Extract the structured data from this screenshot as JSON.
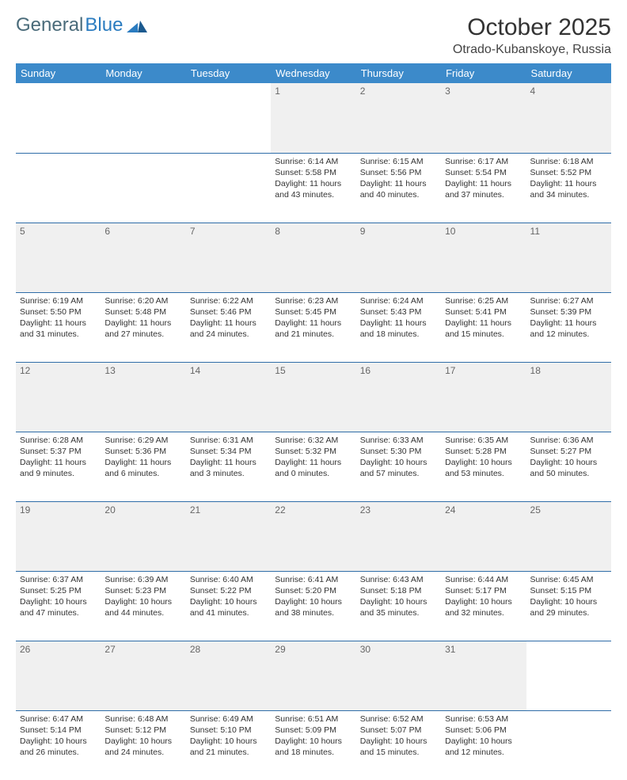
{
  "logo": {
    "text1": "General",
    "text2": "Blue"
  },
  "header": {
    "month_title": "October 2025",
    "location": "Otrado-Kubanskoye, Russia"
  },
  "style": {
    "header_bg": "#3c8aca",
    "header_fg": "#ffffff",
    "daynum_bg": "#f0f0f0",
    "rule_color": "#2f6da8",
    "body_fontsize": 10.5,
    "logo_color1": "#4a6b7a",
    "logo_color2": "#2b7cc0"
  },
  "weekdays": [
    "Sunday",
    "Monday",
    "Tuesday",
    "Wednesday",
    "Thursday",
    "Friday",
    "Saturday"
  ],
  "weeks": [
    [
      null,
      null,
      null,
      {
        "n": "1",
        "sr": "6:14 AM",
        "ss": "5:58 PM",
        "dh": "11",
        "dm": "43"
      },
      {
        "n": "2",
        "sr": "6:15 AM",
        "ss": "5:56 PM",
        "dh": "11",
        "dm": "40"
      },
      {
        "n": "3",
        "sr": "6:17 AM",
        "ss": "5:54 PM",
        "dh": "11",
        "dm": "37"
      },
      {
        "n": "4",
        "sr": "6:18 AM",
        "ss": "5:52 PM",
        "dh": "11",
        "dm": "34"
      }
    ],
    [
      {
        "n": "5",
        "sr": "6:19 AM",
        "ss": "5:50 PM",
        "dh": "11",
        "dm": "31"
      },
      {
        "n": "6",
        "sr": "6:20 AM",
        "ss": "5:48 PM",
        "dh": "11",
        "dm": "27"
      },
      {
        "n": "7",
        "sr": "6:22 AM",
        "ss": "5:46 PM",
        "dh": "11",
        "dm": "24"
      },
      {
        "n": "8",
        "sr": "6:23 AM",
        "ss": "5:45 PM",
        "dh": "11",
        "dm": "21"
      },
      {
        "n": "9",
        "sr": "6:24 AM",
        "ss": "5:43 PM",
        "dh": "11",
        "dm": "18"
      },
      {
        "n": "10",
        "sr": "6:25 AM",
        "ss": "5:41 PM",
        "dh": "11",
        "dm": "15"
      },
      {
        "n": "11",
        "sr": "6:27 AM",
        "ss": "5:39 PM",
        "dh": "11",
        "dm": "12"
      }
    ],
    [
      {
        "n": "12",
        "sr": "6:28 AM",
        "ss": "5:37 PM",
        "dh": "11",
        "dm": "9"
      },
      {
        "n": "13",
        "sr": "6:29 AM",
        "ss": "5:36 PM",
        "dh": "11",
        "dm": "6"
      },
      {
        "n": "14",
        "sr": "6:31 AM",
        "ss": "5:34 PM",
        "dh": "11",
        "dm": "3"
      },
      {
        "n": "15",
        "sr": "6:32 AM",
        "ss": "5:32 PM",
        "dh": "11",
        "dm": "0"
      },
      {
        "n": "16",
        "sr": "6:33 AM",
        "ss": "5:30 PM",
        "dh": "10",
        "dm": "57"
      },
      {
        "n": "17",
        "sr": "6:35 AM",
        "ss": "5:28 PM",
        "dh": "10",
        "dm": "53"
      },
      {
        "n": "18",
        "sr": "6:36 AM",
        "ss": "5:27 PM",
        "dh": "10",
        "dm": "50"
      }
    ],
    [
      {
        "n": "19",
        "sr": "6:37 AM",
        "ss": "5:25 PM",
        "dh": "10",
        "dm": "47"
      },
      {
        "n": "20",
        "sr": "6:39 AM",
        "ss": "5:23 PM",
        "dh": "10",
        "dm": "44"
      },
      {
        "n": "21",
        "sr": "6:40 AM",
        "ss": "5:22 PM",
        "dh": "10",
        "dm": "41"
      },
      {
        "n": "22",
        "sr": "6:41 AM",
        "ss": "5:20 PM",
        "dh": "10",
        "dm": "38"
      },
      {
        "n": "23",
        "sr": "6:43 AM",
        "ss": "5:18 PM",
        "dh": "10",
        "dm": "35"
      },
      {
        "n": "24",
        "sr": "6:44 AM",
        "ss": "5:17 PM",
        "dh": "10",
        "dm": "32"
      },
      {
        "n": "25",
        "sr": "6:45 AM",
        "ss": "5:15 PM",
        "dh": "10",
        "dm": "29"
      }
    ],
    [
      {
        "n": "26",
        "sr": "6:47 AM",
        "ss": "5:14 PM",
        "dh": "10",
        "dm": "26"
      },
      {
        "n": "27",
        "sr": "6:48 AM",
        "ss": "5:12 PM",
        "dh": "10",
        "dm": "24"
      },
      {
        "n": "28",
        "sr": "6:49 AM",
        "ss": "5:10 PM",
        "dh": "10",
        "dm": "21"
      },
      {
        "n": "29",
        "sr": "6:51 AM",
        "ss": "5:09 PM",
        "dh": "10",
        "dm": "18"
      },
      {
        "n": "30",
        "sr": "6:52 AM",
        "ss": "5:07 PM",
        "dh": "10",
        "dm": "15"
      },
      {
        "n": "31",
        "sr": "6:53 AM",
        "ss": "5:06 PM",
        "dh": "10",
        "dm": "12"
      },
      null
    ]
  ],
  "labels": {
    "sunrise": "Sunrise:",
    "sunset": "Sunset:",
    "daylight_pre": "Daylight:",
    "hours_word": "hours",
    "and_word": "and",
    "minutes_word": "minutes."
  }
}
